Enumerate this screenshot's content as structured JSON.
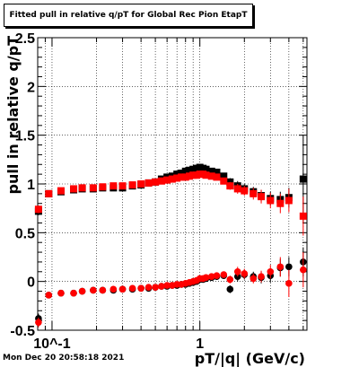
{
  "title": "Fitted pull in relative q/pT for Global Rec Pion EtapT",
  "timestamp": "Mon Dec 20 20:58:18 2021",
  "chart_data": {
    "type": "scatter",
    "title": "Fitted pull in relative q/pT for Global Rec Pion EtapT",
    "xlabel": "pT/|q| (GeV/c)",
    "ylabel": "pull in relative q/pT",
    "x_scale": "log",
    "xlim": [
      0.08,
      5.3
    ],
    "ylim": [
      -0.5,
      2.5
    ],
    "x_tick_labels": [
      "10^-1",
      "1"
    ],
    "y_tick_labels": [
      "-0.5",
      "0",
      "0.5",
      "1",
      "1.5",
      "2",
      "2.5"
    ],
    "grid": true,
    "series": [
      {
        "color": "#000000",
        "marker": "square",
        "points": [
          [
            0.081,
            0.72
          ],
          [
            0.095,
            0.9
          ],
          [
            0.115,
            0.92
          ],
          [
            0.14,
            0.94
          ],
          [
            0.16,
            0.95
          ],
          [
            0.19,
            0.95
          ],
          [
            0.22,
            0.96
          ],
          [
            0.26,
            0.96
          ],
          [
            0.3,
            0.96
          ],
          [
            0.35,
            0.98
          ],
          [
            0.4,
            0.99
          ],
          [
            0.45,
            1.01
          ],
          [
            0.5,
            1.02
          ],
          [
            0.55,
            1.05
          ],
          [
            0.6,
            1.07
          ],
          [
            0.65,
            1.08
          ],
          [
            0.7,
            1.1
          ],
          [
            0.75,
            1.11
          ],
          [
            0.8,
            1.13
          ],
          [
            0.85,
            1.14
          ],
          [
            0.9,
            1.15
          ],
          [
            0.95,
            1.16
          ],
          [
            1.0,
            1.17
          ],
          [
            1.05,
            1.16
          ],
          [
            1.1,
            1.15
          ],
          [
            1.2,
            1.13
          ],
          [
            1.3,
            1.12
          ],
          [
            1.45,
            1.08
          ],
          [
            1.6,
            1.02
          ],
          [
            1.8,
            0.98
          ],
          [
            2.0,
            0.95
          ],
          [
            2.3,
            0.92
          ],
          [
            2.6,
            0.88
          ],
          [
            3.0,
            0.85
          ],
          [
            3.5,
            0.84
          ],
          [
            4.0,
            0.86
          ],
          [
            5.0,
            1.05
          ]
        ],
        "error_y": [
          0.04,
          0.02,
          0.02,
          0.02,
          0.02,
          0.02,
          0.02,
          0.02,
          0.02,
          0.02,
          0.02,
          0.02,
          0.02,
          0.02,
          0.02,
          0.02,
          0.02,
          0.02,
          0.02,
          0.02,
          0.02,
          0.02,
          0.02,
          0.02,
          0.03,
          0.03,
          0.03,
          0.03,
          0.04,
          0.05,
          0.05,
          0.05,
          0.06,
          0.07,
          0.08,
          0.1,
          0.45
        ]
      },
      {
        "color": "#ff0000",
        "marker": "square",
        "points": [
          [
            0.081,
            0.74
          ],
          [
            0.095,
            0.9
          ],
          [
            0.115,
            0.93
          ],
          [
            0.14,
            0.95
          ],
          [
            0.16,
            0.96
          ],
          [
            0.19,
            0.96
          ],
          [
            0.22,
            0.97
          ],
          [
            0.26,
            0.98
          ],
          [
            0.3,
            0.98
          ],
          [
            0.35,
            0.99
          ],
          [
            0.4,
            1.0
          ],
          [
            0.45,
            1.01
          ],
          [
            0.5,
            1.02
          ],
          [
            0.55,
            1.03
          ],
          [
            0.6,
            1.04
          ],
          [
            0.65,
            1.05
          ],
          [
            0.7,
            1.06
          ],
          [
            0.75,
            1.07
          ],
          [
            0.8,
            1.07
          ],
          [
            0.85,
            1.08
          ],
          [
            0.9,
            1.09
          ],
          [
            0.95,
            1.09
          ],
          [
            1.0,
            1.1
          ],
          [
            1.05,
            1.1
          ],
          [
            1.1,
            1.09
          ],
          [
            1.2,
            1.08
          ],
          [
            1.3,
            1.07
          ],
          [
            1.45,
            1.03
          ],
          [
            1.6,
            0.98
          ],
          [
            1.8,
            0.95
          ],
          [
            2.0,
            0.93
          ],
          [
            2.3,
            0.9
          ],
          [
            2.6,
            0.87
          ],
          [
            3.0,
            0.83
          ],
          [
            3.5,
            0.8
          ],
          [
            4.0,
            0.83
          ],
          [
            5.0,
            0.67
          ]
        ],
        "error_y": [
          0.04,
          0.02,
          0.02,
          0.02,
          0.02,
          0.02,
          0.02,
          0.02,
          0.02,
          0.02,
          0.02,
          0.02,
          0.02,
          0.02,
          0.02,
          0.02,
          0.02,
          0.02,
          0.02,
          0.02,
          0.02,
          0.02,
          0.02,
          0.02,
          0.03,
          0.03,
          0.03,
          0.03,
          0.04,
          0.05,
          0.05,
          0.06,
          0.07,
          0.08,
          0.1,
          0.12,
          0.2
        ]
      },
      {
        "color": "#000000",
        "marker": "circle",
        "points": [
          [
            0.081,
            -0.38
          ],
          [
            0.095,
            -0.14
          ],
          [
            0.115,
            -0.12
          ],
          [
            0.14,
            -0.12
          ],
          [
            0.16,
            -0.1
          ],
          [
            0.19,
            -0.09
          ],
          [
            0.22,
            -0.09
          ],
          [
            0.26,
            -0.09
          ],
          [
            0.3,
            -0.08
          ],
          [
            0.35,
            -0.08
          ],
          [
            0.4,
            -0.07
          ],
          [
            0.45,
            -0.07
          ],
          [
            0.5,
            -0.06
          ],
          [
            0.55,
            -0.05
          ],
          [
            0.6,
            -0.05
          ],
          [
            0.65,
            -0.04
          ],
          [
            0.7,
            -0.04
          ],
          [
            0.75,
            -0.03
          ],
          [
            0.8,
            -0.03
          ],
          [
            0.85,
            -0.02
          ],
          [
            0.9,
            -0.01
          ],
          [
            0.95,
            0.0
          ],
          [
            1.0,
            0.02
          ],
          [
            1.05,
            0.02
          ],
          [
            1.1,
            0.03
          ],
          [
            1.2,
            0.04
          ],
          [
            1.3,
            0.05
          ],
          [
            1.45,
            0.06
          ],
          [
            1.6,
            -0.08
          ],
          [
            1.8,
            0.05
          ],
          [
            2.0,
            0.07
          ],
          [
            2.3,
            0.05
          ],
          [
            2.6,
            0.04
          ],
          [
            3.0,
            0.06
          ],
          [
            3.5,
            0.14
          ],
          [
            4.0,
            0.15
          ],
          [
            5.0,
            0.2
          ]
        ],
        "error_y": [
          0.05,
          0.02,
          0.02,
          0.02,
          0.02,
          0.02,
          0.02,
          0.02,
          0.02,
          0.02,
          0.02,
          0.02,
          0.02,
          0.02,
          0.02,
          0.02,
          0.02,
          0.02,
          0.02,
          0.02,
          0.02,
          0.02,
          0.02,
          0.02,
          0.03,
          0.03,
          0.03,
          0.03,
          0.04,
          0.05,
          0.05,
          0.05,
          0.06,
          0.07,
          0.09,
          0.1,
          0.15
        ]
      },
      {
        "color": "#ff0000",
        "marker": "circle",
        "points": [
          [
            0.081,
            -0.42
          ],
          [
            0.095,
            -0.14
          ],
          [
            0.115,
            -0.12
          ],
          [
            0.14,
            -0.12
          ],
          [
            0.16,
            -0.1
          ],
          [
            0.19,
            -0.09
          ],
          [
            0.22,
            -0.09
          ],
          [
            0.26,
            -0.08
          ],
          [
            0.3,
            -0.08
          ],
          [
            0.35,
            -0.07
          ],
          [
            0.4,
            -0.07
          ],
          [
            0.45,
            -0.06
          ],
          [
            0.5,
            -0.06
          ],
          [
            0.55,
            -0.05
          ],
          [
            0.6,
            -0.04
          ],
          [
            0.65,
            -0.04
          ],
          [
            0.7,
            -0.03
          ],
          [
            0.75,
            -0.03
          ],
          [
            0.8,
            -0.02
          ],
          [
            0.85,
            -0.01
          ],
          [
            0.9,
            0.0
          ],
          [
            0.95,
            0.01
          ],
          [
            1.0,
            0.03
          ],
          [
            1.05,
            0.03
          ],
          [
            1.1,
            0.04
          ],
          [
            1.2,
            0.05
          ],
          [
            1.3,
            0.06
          ],
          [
            1.45,
            0.07
          ],
          [
            1.6,
            0.02
          ],
          [
            1.8,
            0.1
          ],
          [
            2.0,
            0.08
          ],
          [
            2.3,
            0.03
          ],
          [
            2.6,
            0.05
          ],
          [
            3.0,
            0.1
          ],
          [
            3.5,
            0.15
          ],
          [
            4.0,
            -0.02
          ],
          [
            5.0,
            0.12
          ]
        ],
        "error_y": [
          0.05,
          0.02,
          0.02,
          0.02,
          0.02,
          0.02,
          0.02,
          0.02,
          0.02,
          0.02,
          0.02,
          0.02,
          0.02,
          0.02,
          0.02,
          0.02,
          0.02,
          0.02,
          0.02,
          0.02,
          0.02,
          0.02,
          0.02,
          0.02,
          0.03,
          0.03,
          0.03,
          0.03,
          0.04,
          0.05,
          0.05,
          0.05,
          0.06,
          0.07,
          0.1,
          0.14,
          0.18
        ]
      }
    ]
  }
}
